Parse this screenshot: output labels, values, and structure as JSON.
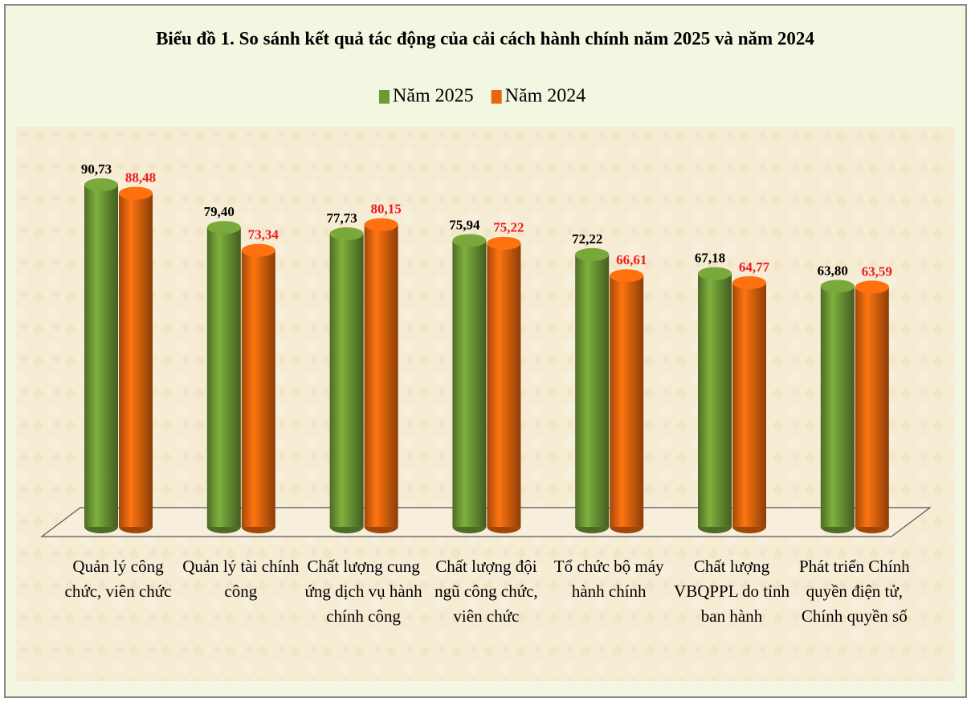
{
  "chart_data": {
    "type": "bar",
    "title": "Biểu đồ 1. So sánh kết quả tác động của cải cách hành chính năm 2025 và năm 2024",
    "categories": [
      "Quản lý công chức, viên chức",
      "Quản lý tài chính công",
      "Chất lượng cung ứng dịch vụ hành chính công",
      "Chất lượng đội ngũ công chức, viên chức",
      "Tổ chức bộ máy hành chính",
      "Chất lượng VBQPPL do tỉnh ban hành",
      "Phát triển Chính quyền điện tử, Chính quyền số"
    ],
    "series": [
      {
        "name": "Năm 2025",
        "color": "#6e9a36",
        "label_color": "#000000",
        "values": [
          90.73,
          79.4,
          77.73,
          75.94,
          72.22,
          67.18,
          63.8
        ],
        "value_labels": [
          "90,73",
          "79,40",
          "77,73",
          "75,94",
          "72,22",
          "67,18",
          "63,80"
        ]
      },
      {
        "name": "Năm 2024",
        "color": "#e8660e",
        "label_color": "#ee1c1c",
        "values": [
          88.48,
          73.34,
          80.15,
          75.22,
          66.61,
          64.77,
          63.59
        ],
        "value_labels": [
          "88,48",
          "73,34",
          "80,15",
          "75,22",
          "66,61",
          "64,77",
          "63,59"
        ]
      }
    ]
  }
}
